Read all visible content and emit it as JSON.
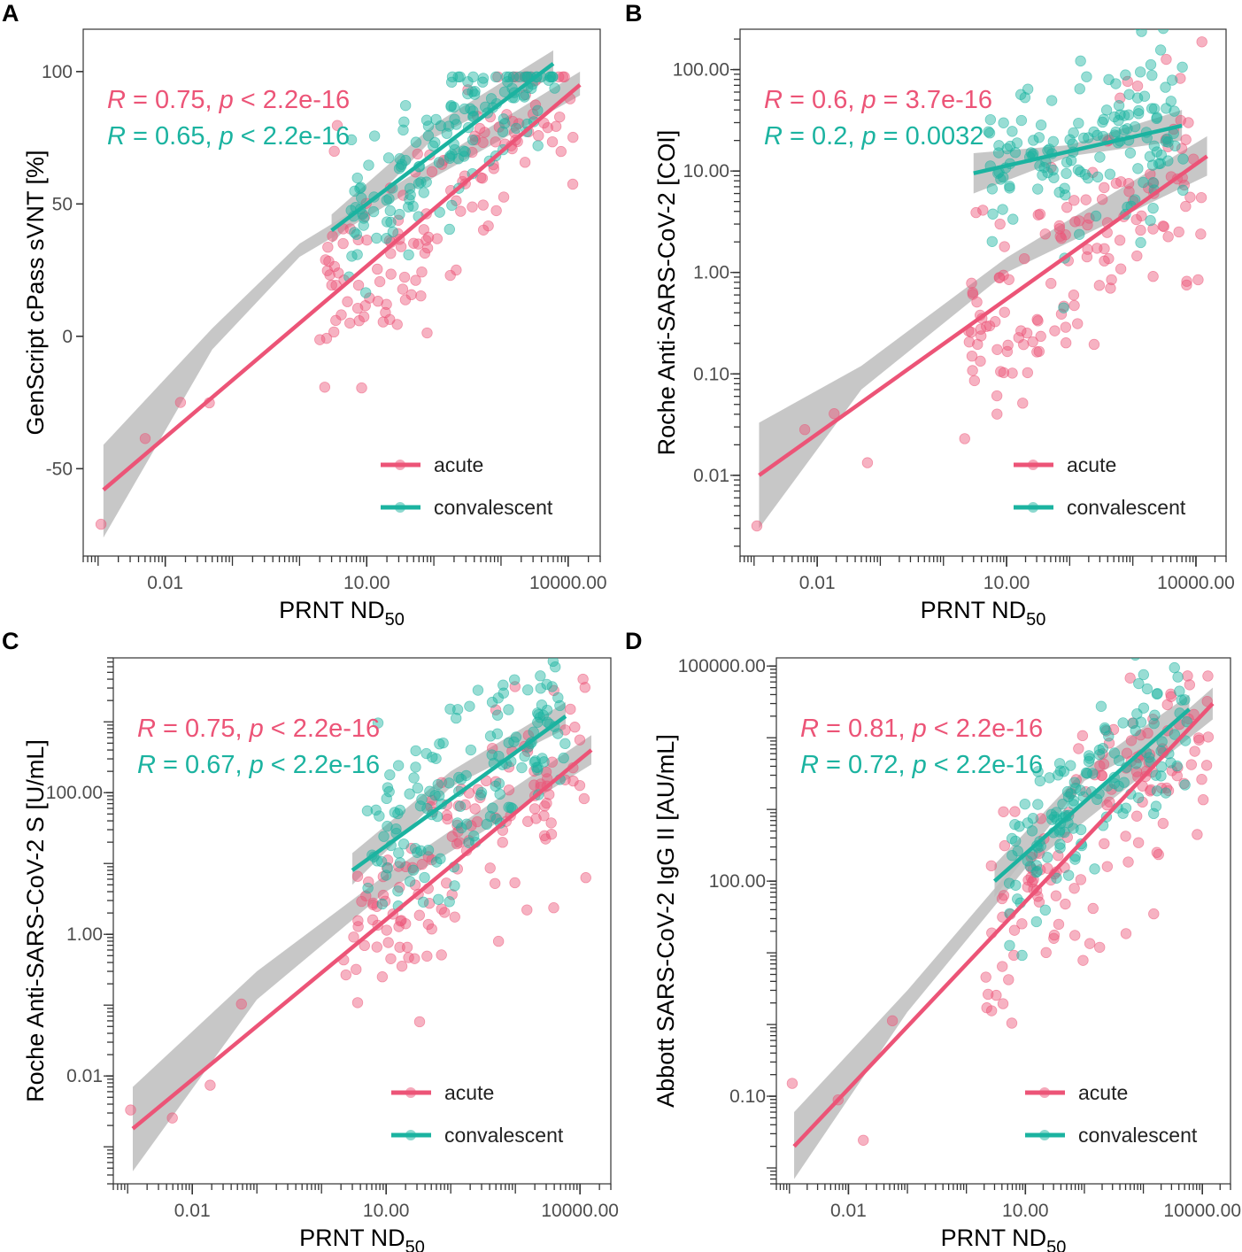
{
  "colors": {
    "acute": "#EC5477",
    "convalescent": "#1BB3A0",
    "band": "#BDBDBD"
  },
  "legend": {
    "acute": "acute",
    "convalescent": "convalescent"
  },
  "chart_data": [
    {
      "panel": "A",
      "type": "scatter",
      "yscale": "linear",
      "xlabel": "PRNT ND",
      "xlabel_sub": "50",
      "ylabel": "GenScript cPass sVNT [%]",
      "xlim": [
        0.0006,
        30000
      ],
      "ylim": [
        -83,
        116
      ],
      "xticks": [
        {
          "v": 0.01,
          "label": "0.01"
        },
        {
          "v": 10,
          "label": "10.00"
        },
        {
          "v": 10000,
          "label": "10000.00"
        }
      ],
      "yticks": [
        {
          "v": -50,
          "label": "-50"
        },
        {
          "v": 0,
          "label": "0"
        },
        {
          "v": 50,
          "label": "50"
        },
        {
          "v": 100,
          "label": "100"
        }
      ],
      "stats": [
        {
          "group": "acute",
          "r_label": "R",
          "r_text": " = 0.75, ",
          "p_label": "p",
          "p_text": " < 2.2e-16"
        },
        {
          "group": "convalescent",
          "r_label": "R",
          "r_text": " = 0.65, ",
          "p_label": "p",
          "p_text": " < 2.2e-16"
        }
      ],
      "fits": [
        {
          "group": "acute",
          "x": [
            0.0012,
            15000
          ],
          "y": [
            -58,
            95
          ],
          "ci": [
            [
              0.0012,
              -76,
              -41
            ],
            [
              0.05,
              -5,
              3
            ],
            [
              1,
              30,
              35
            ],
            [
              100,
              60,
              66
            ],
            [
              15000,
              91,
              100
            ]
          ]
        },
        {
          "group": "convalescent",
          "x": [
            3,
            6000
          ],
          "y": [
            40,
            103
          ],
          "ci": [
            [
              3,
              35,
              46
            ],
            [
              100,
              75,
              80
            ],
            [
              6000,
              98,
              108
            ]
          ]
        }
      ],
      "seed": 11
    },
    {
      "panel": "B",
      "type": "scatter",
      "yscale": "log",
      "xlabel": "PRNT ND",
      "xlabel_sub": "50",
      "ylabel": "Roche Anti-SARS-CoV-2 [COI]",
      "xlim": [
        0.0006,
        30000
      ],
      "ylim": [
        0.0016,
        250
      ],
      "xticks": [
        {
          "v": 0.01,
          "label": "0.01"
        },
        {
          "v": 10,
          "label": "10.00"
        },
        {
          "v": 10000,
          "label": "10000.00"
        }
      ],
      "yticks": [
        {
          "v": 0.01,
          "label": "0.01"
        },
        {
          "v": 0.1,
          "label": "0.10"
        },
        {
          "v": 1,
          "label": "1.00"
        },
        {
          "v": 10,
          "label": "10.00"
        },
        {
          "v": 100,
          "label": "100.00"
        }
      ],
      "stats": [
        {
          "group": "acute",
          "r_label": "R",
          "r_text": " = 0.6, ",
          "p_label": "p",
          "p_text": " = 3.7e-16"
        },
        {
          "group": "convalescent",
          "r_label": "R",
          "r_text": " = 0.2, ",
          "p_label": "p",
          "p_text": " = 0.0032"
        }
      ],
      "fits": [
        {
          "group": "acute",
          "x": [
            0.0012,
            15000
          ],
          "y": [
            0.01,
            14
          ],
          "ci": [
            [
              0.0012,
              0.003,
              0.033
            ],
            [
              0.05,
              0.07,
              0.12
            ],
            [
              10,
              1,
              1.4
            ],
            [
              15000,
              9,
              22
            ]
          ]
        },
        {
          "group": "convalescent",
          "x": [
            3,
            6000
          ],
          "y": [
            9.5,
            28
          ],
          "ci": [
            [
              3,
              6,
              15
            ],
            [
              100,
              14,
              18
            ],
            [
              6000,
              20,
              40
            ]
          ]
        }
      ],
      "seed": 23
    },
    {
      "panel": "C",
      "type": "scatter",
      "yscale": "log",
      "xlabel": "PRNT ND",
      "xlabel_sub": "50",
      "ylabel": "Roche Anti-SARS-CoV-2 S [U/mL]",
      "xlim": [
        0.0006,
        30000
      ],
      "ylim": [
        0.0003,
        8000
      ],
      "xticks": [
        {
          "v": 0.01,
          "label": "0.01"
        },
        {
          "v": 10,
          "label": "10.00"
        },
        {
          "v": 10000,
          "label": "10000.00"
        }
      ],
      "yticks": [
        {
          "v": 0.01,
          "label": "0.01"
        },
        {
          "v": 1,
          "label": "1.00"
        },
        {
          "v": 100,
          "label": "100.00"
        }
      ],
      "stats": [
        {
          "group": "acute",
          "r_label": "R",
          "r_text": " = 0.75, ",
          "p_label": "p",
          "p_text": " < 2.2e-16"
        },
        {
          "group": "convalescent",
          "r_label": "R",
          "r_text": " = 0.67, ",
          "p_label": "p",
          "p_text": " < 2.2e-16"
        }
      ],
      "fits": [
        {
          "group": "acute",
          "x": [
            0.0012,
            15000
          ],
          "y": [
            0.0018,
            400
          ],
          "ci": [
            [
              0.0012,
              0.00045,
              0.007
            ],
            [
              0.1,
              0.12,
              0.3
            ],
            [
              10,
              4,
              7
            ],
            [
              15000,
              250,
              650
            ]
          ]
        },
        {
          "group": "convalescent",
          "x": [
            3,
            6000
          ],
          "y": [
            8,
            1200
          ],
          "ci": [
            [
              3,
              5,
              14
            ],
            [
              100,
              120,
              200
            ],
            [
              6000,
              800,
              1900
            ]
          ]
        }
      ],
      "seed": 37
    },
    {
      "panel": "D",
      "type": "scatter",
      "yscale": "log",
      "xlabel": "PRNT ND",
      "xlabel_sub": "50",
      "ylabel": "Abbott SARS-CoV-2 IgG II [AU/mL]",
      "xlim": [
        0.0006,
        30000
      ],
      "ylim": [
        0.006,
        130000
      ],
      "xticks": [
        {
          "v": 0.01,
          "label": "0.01"
        },
        {
          "v": 10,
          "label": "10.00"
        },
        {
          "v": 10000,
          "label": "10000.00"
        }
      ],
      "yticks": [
        {
          "v": 0.1,
          "label": "0.10"
        },
        {
          "v": 100,
          "label": "100.00"
        },
        {
          "v": 100000,
          "label": "100000.00"
        }
      ],
      "stats": [
        {
          "group": "acute",
          "r_label": "R",
          "r_text": " = 0.81, ",
          "p_label": "p",
          "p_text": " < 2.2e-16"
        },
        {
          "group": "convalescent",
          "r_label": "R",
          "r_text": " = 0.72, ",
          "p_label": "p",
          "p_text": " < 2.2e-16"
        }
      ],
      "fits": [
        {
          "group": "acute",
          "x": [
            0.0012,
            15000
          ],
          "y": [
            0.02,
            30000
          ],
          "ci": [
            [
              0.0012,
              0.007,
              0.06
            ],
            [
              0.1,
              1.5,
              3
            ],
            [
              10,
              150,
              250
            ],
            [
              15000,
              18000,
              50000
            ]
          ]
        },
        {
          "group": "convalescent",
          "x": [
            3,
            6000
          ],
          "y": [
            100,
            25000
          ],
          "ci": [
            [
              3,
              60,
              170
            ],
            [
              100,
              2500,
              3600
            ],
            [
              6000,
              15000,
              40000
            ]
          ]
        }
      ],
      "seed": 53
    }
  ]
}
